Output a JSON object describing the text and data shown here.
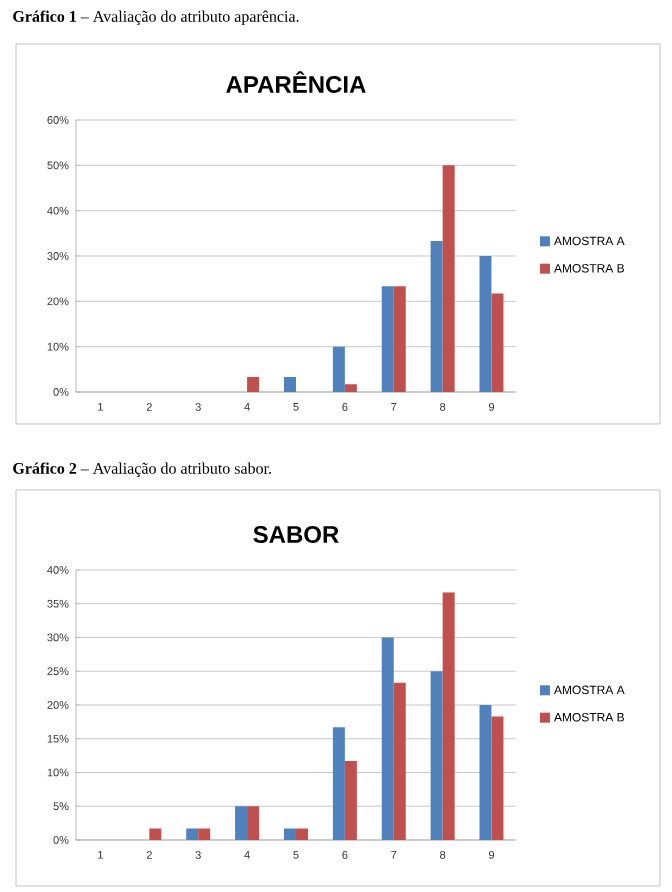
{
  "chart_data": [
    {
      "type": "bar",
      "title": "APARÊNCIA",
      "annotations": [
        "**Gráfico 1** – Avaliação do atributo aparência."
      ],
      "categories": [
        "1",
        "2",
        "3",
        "4",
        "5",
        "6",
        "7",
        "8",
        "9"
      ],
      "series": [
        {
          "name": "AMOSTRA A",
          "color": "#4f81bd",
          "values": [
            0,
            0,
            0,
            0,
            3.3,
            10,
            23.3,
            33.3,
            30
          ]
        },
        {
          "name": "AMOSTRA B",
          "color": "#c0504d",
          "values": [
            0,
            0,
            0,
            3.3,
            0,
            1.7,
            23.3,
            50,
            21.7
          ]
        }
      ],
      "ylim": [
        0,
        60
      ],
      "yticks": [
        {
          "value": 0,
          "label": "0%"
        },
        {
          "value": 10,
          "label": "10%"
        },
        {
          "value": 20,
          "label": "20%"
        },
        {
          "value": 30,
          "label": "30%"
        },
        {
          "value": 40,
          "label": "40%"
        },
        {
          "value": 50,
          "label": "50%"
        },
        {
          "value": 60,
          "label": "60%"
        }
      ],
      "grid": "y",
      "legend": "right"
    },
    {
      "type": "bar",
      "title": "SABOR",
      "annotations": [
        "**Gráfico 2** – Avaliação do atributo sabor."
      ],
      "categories": [
        "1",
        "2",
        "3",
        "4",
        "5",
        "6",
        "7",
        "8",
        "9"
      ],
      "series": [
        {
          "name": "AMOSTRA A",
          "color": "#4f81bd",
          "values": [
            0,
            0,
            1.7,
            5,
            1.7,
            16.7,
            30,
            25,
            20
          ]
        },
        {
          "name": "AMOSTRA B",
          "color": "#c0504d",
          "values": [
            0,
            1.7,
            1.7,
            5,
            1.7,
            11.7,
            23.3,
            36.7,
            18.3
          ]
        }
      ],
      "ylim": [
        0,
        40
      ],
      "yticks": [
        {
          "value": 0,
          "label": "0%"
        },
        {
          "value": 5,
          "label": "5%"
        },
        {
          "value": 10,
          "label": "10%"
        },
        {
          "value": 15,
          "label": "15%"
        },
        {
          "value": 20,
          "label": "20%"
        },
        {
          "value": 25,
          "label": "25%"
        },
        {
          "value": 30,
          "label": "30%"
        },
        {
          "value": 35,
          "label": "35%"
        },
        {
          "value": 40,
          "label": "40%"
        }
      ],
      "grid": "y",
      "legend": "right"
    }
  ]
}
